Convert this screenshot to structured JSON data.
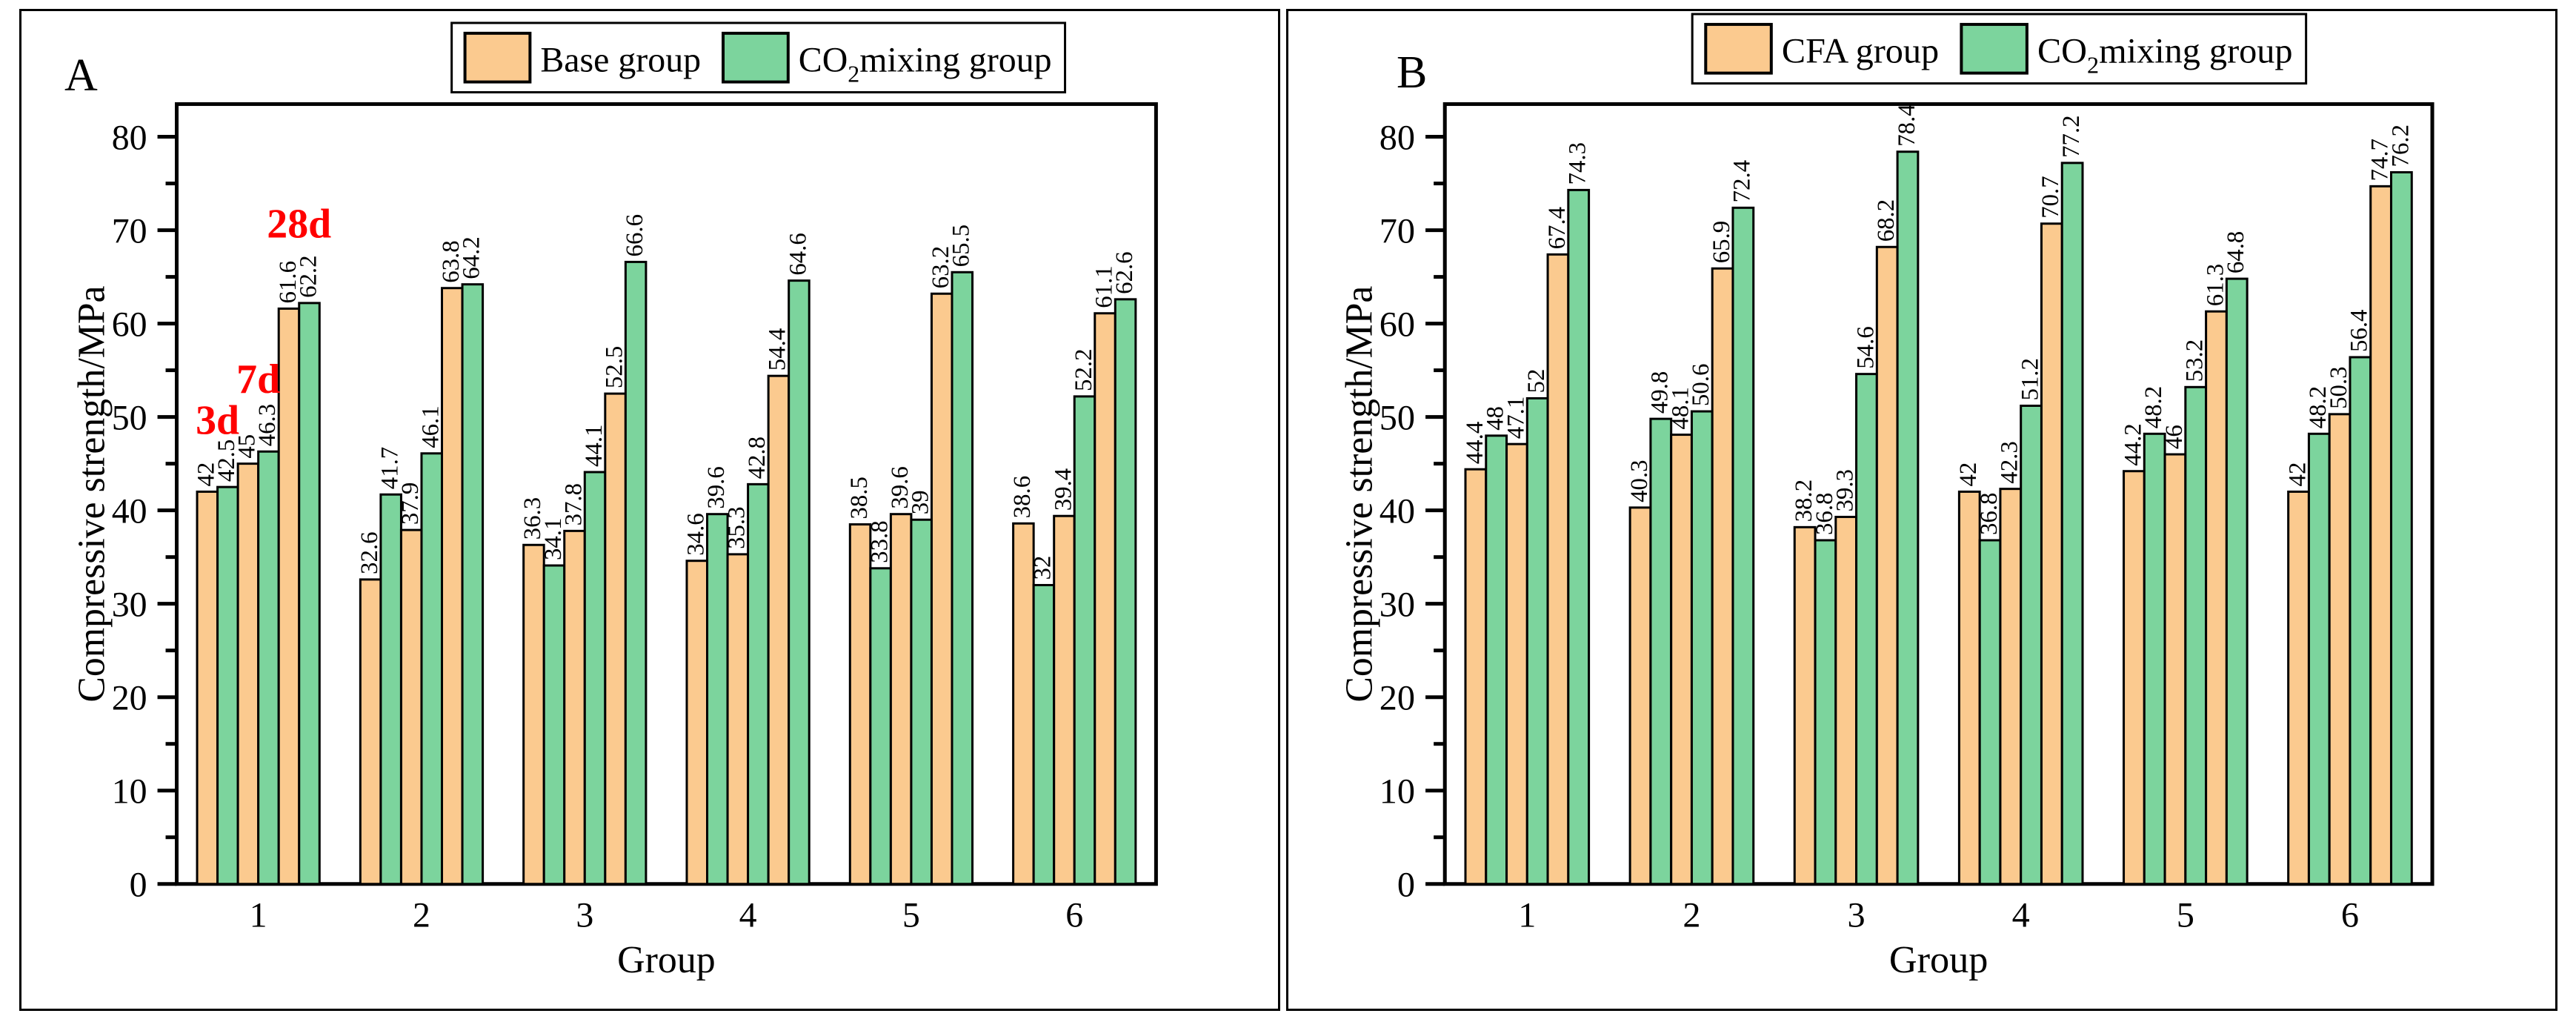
{
  "figure": {
    "background": "#FFFFFF",
    "frame_color": "#000000"
  },
  "chart_data": [
    {
      "type": "bar",
      "panel_label": "A",
      "title": "",
      "xlabel": "Group",
      "ylabel": "Compressive strength/MPa",
      "ylim": [
        0,
        83.5
      ],
      "yticks_major": [
        0,
        10,
        20,
        30,
        40,
        50,
        60,
        70,
        80
      ],
      "yticks_minor": [
        5,
        15,
        25,
        35,
        45,
        55,
        65,
        75
      ],
      "categories": [
        "1",
        "2",
        "3",
        "4",
        "5",
        "6"
      ],
      "grid": "off",
      "legend_position": "top-center",
      "legend": [
        {
          "pre": "Base group",
          "sub": "",
          "post": "",
          "color": "#FBCA8F"
        },
        {
          "pre": "CO",
          "sub": "2",
          "post": "mixing group",
          "color": "#7CD49D"
        }
      ],
      "series": [
        {
          "name": "Base group 3d",
          "color": "#FBCA8F",
          "values": [
            42,
            32.6,
            36.3,
            34.6,
            38.5,
            38.6
          ]
        },
        {
          "name": "CO2 mixing group 3d",
          "color": "#7CD49D",
          "values": [
            42.5,
            41.7,
            34.1,
            39.6,
            33.8,
            32
          ]
        },
        {
          "name": "Base group 7d",
          "color": "#FBCA8F",
          "values": [
            45,
            37.9,
            37.8,
            35.3,
            39.6,
            39.4
          ]
        },
        {
          "name": "CO2 mixing group 7d",
          "color": "#7CD49D",
          "values": [
            46.3,
            46.1,
            44.1,
            42.8,
            39,
            52.2
          ]
        },
        {
          "name": "Base group 28d",
          "color": "#FBCA8F",
          "values": [
            61.6,
            63.8,
            52.5,
            54.4,
            63.2,
            61.1
          ]
        },
        {
          "name": "CO2 mixing group 28d",
          "color": "#7CD49D",
          "values": [
            62.2,
            64.2,
            66.6,
            64.6,
            65.5,
            62.6
          ]
        }
      ],
      "annotations": [
        {
          "text": "3d",
          "color": "#FF0000",
          "group_index": 0,
          "pair_index": 0,
          "y_mpa": 48.2
        },
        {
          "text": "7d",
          "color": "#FF0000",
          "group_index": 0,
          "pair_index": 1,
          "y_mpa": 52.6
        },
        {
          "text": "28d",
          "color": "#FF0000",
          "group_index": 0,
          "pair_index": 2,
          "y_mpa": 69.2
        }
      ]
    },
    {
      "type": "bar",
      "panel_label": "B",
      "title": "",
      "xlabel": "Group",
      "ylabel": "Compressive strength/MPa",
      "ylim": [
        0,
        83.5
      ],
      "yticks_major": [
        0,
        10,
        20,
        30,
        40,
        50,
        60,
        70,
        80
      ],
      "yticks_minor": [
        5,
        15,
        25,
        35,
        45,
        55,
        65,
        75
      ],
      "categories": [
        "1",
        "2",
        "3",
        "4",
        "5",
        "6"
      ],
      "grid": "off",
      "legend_position": "top-center",
      "legend": [
        {
          "pre": "CFA group",
          "sub": "",
          "post": "",
          "color": "#FBCA8F"
        },
        {
          "pre": "CO",
          "sub": "2",
          "post": "mixing group",
          "color": "#7CD49D"
        }
      ],
      "series": [
        {
          "name": "CFA group 3d",
          "color": "#FBCA8F",
          "values": [
            44.4,
            40.3,
            38.2,
            42,
            44.2,
            42
          ]
        },
        {
          "name": "CO2 mixing group 3d",
          "color": "#7CD49D",
          "values": [
            48,
            49.8,
            36.8,
            36.8,
            48.2,
            48.2
          ]
        },
        {
          "name": "CFA group 7d",
          "color": "#FBCA8F",
          "values": [
            47.1,
            48.1,
            39.3,
            42.3,
            46,
            50.3
          ]
        },
        {
          "name": "CO2 mixing group 7d",
          "color": "#7CD49D",
          "values": [
            52,
            50.6,
            54.6,
            51.2,
            53.2,
            56.4
          ]
        },
        {
          "name": "CFA group 28d",
          "color": "#FBCA8F",
          "values": [
            67.4,
            65.9,
            68.2,
            70.7,
            61.3,
            74.7
          ]
        },
        {
          "name": "CO2 mixing group 28d",
          "color": "#7CD49D",
          "values": [
            74.3,
            72.4,
            78.4,
            77.2,
            64.8,
            76.2
          ]
        }
      ],
      "annotations": []
    }
  ]
}
